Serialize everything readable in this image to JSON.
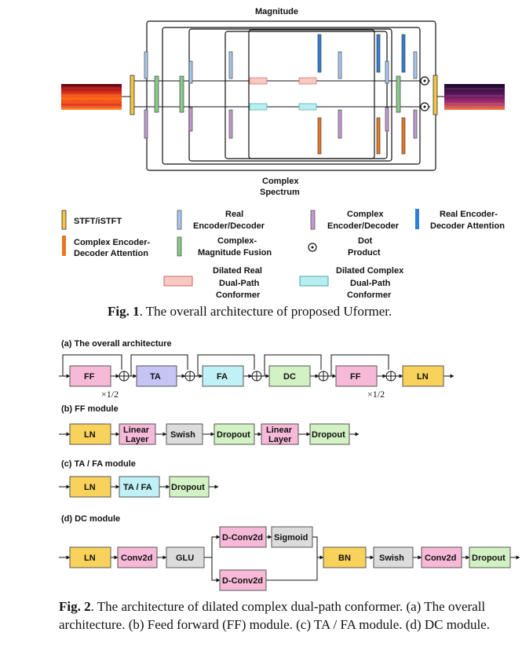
{
  "fig1": {
    "magnitude_label": "Magnitude",
    "complex_label_1": "Complex",
    "complex_label_2": "Spectrum",
    "legend": {
      "stft": "STFT/iSTFT",
      "real_1": "Real",
      "real_2": "Encoder/Decoder",
      "complex_1": "Complex",
      "complex_2": "Encoder/Decoder",
      "real_att_1": "Real Encoder-",
      "real_att_2": "Decoder Attention",
      "complex_att_1": "Complex Encoder-",
      "complex_att_2": "Decoder Attention",
      "cmf_1": "Complex-",
      "cmf_2": "Magnitude Fusion",
      "dot_1": "Dot",
      "dot_2": "Product",
      "dr_1": "Dilated Real",
      "dr_2": "Dual-Path",
      "dr_3": "Conformer",
      "dc_1": "Dilated Complex",
      "dc_2": "Dual-Path",
      "dc_3": "Conformer"
    },
    "caption_bold": "Fig. 1",
    "caption_text": ". The overall architecture of proposed Uformer."
  },
  "fig2": {
    "a_title": "(a)  The overall architecture",
    "a_blocks": [
      "FF",
      "TA",
      "FA",
      "DC",
      "FF",
      "LN"
    ],
    "half_left": "×1/2",
    "half_right": "×1/2",
    "b_title": "(b) FF module",
    "b_ln": "LN",
    "b_linear1_1": "Linear",
    "b_linear1_2": "Layer",
    "b_swish": "Swish",
    "b_dropout1": "Dropout",
    "b_linear2_1": "Linear",
    "b_linear2_2": "Layer",
    "b_dropout2": "Dropout",
    "c_title": "(c)  TA / FA module",
    "c_ln": "LN",
    "c_tafa": "TA / FA",
    "c_dropout": "Dropout",
    "d_title": "(d)  DC module",
    "d_ln": "LN",
    "d_conv2d": "Conv2d",
    "d_glu": "GLU",
    "d_dconv_top": "D-Conv2d",
    "d_sigmoid": "Sigmoid",
    "d_dconv_bottom": "D-Conv2d",
    "d_bn": "BN",
    "d_swish": "Swish",
    "d_conv2d_2": "Conv2d",
    "d_dropout": "Dropout",
    "caption_bold": "Fig. 2",
    "caption_text": ". The architecture of dilated complex dual-path conformer. (a) The overall architecture. (b) Feed forward (FF) module. (c) TA / FA module. (d) DC module."
  },
  "colors": {
    "stft": "#f4c542",
    "real": "#a9c8ee",
    "complex": "#c39bd3",
    "real_att": "#2e7fd6",
    "complex_att": "#e87722",
    "cmf": "#88c98a",
    "dr_fill": "#f8c9c3",
    "dc_fill": "#b8eef0",
    "ff": "#f7b9d8",
    "ta": "#c6c3f5",
    "fa": "#bff1f6",
    "dc": "#d2f2c3",
    "ln": "#f9d25c",
    "swish": "#dcdcdc"
  }
}
